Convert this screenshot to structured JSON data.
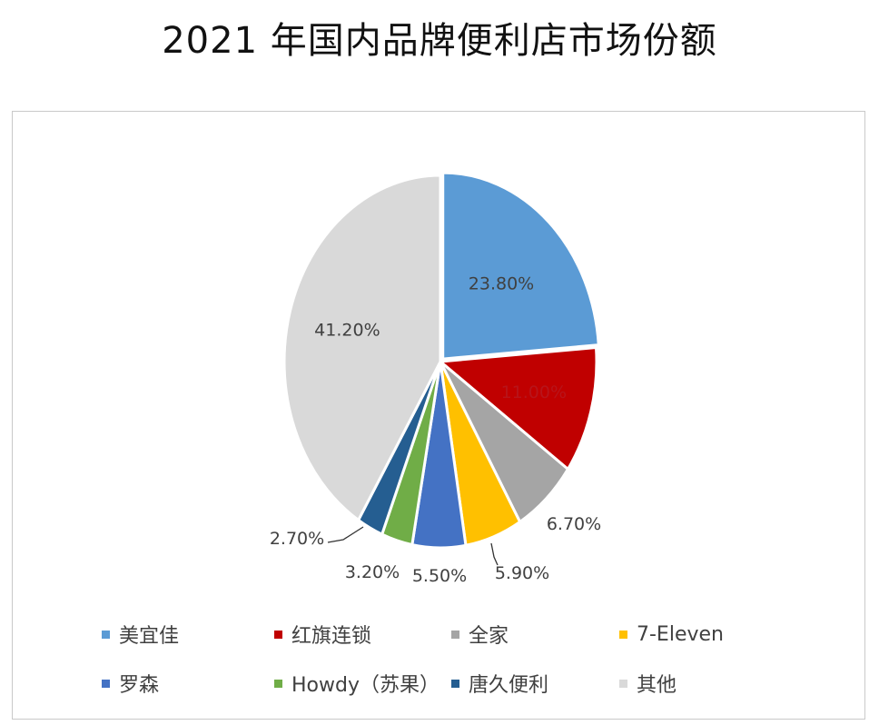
{
  "title": "2021 年国内品牌便利店市场份额",
  "chart_data": {
    "type": "pie",
    "title": "2021 年国内品牌便利店市场份额",
    "legend_position": "bottom",
    "slices": [
      {
        "label": "美宜佳",
        "value": 23.8,
        "value_label": "23.80%",
        "color": "#5b9bd5"
      },
      {
        "label": "红旗连锁",
        "value": 11.0,
        "value_label": "11.00%",
        "color": "#c00000"
      },
      {
        "label": "全家",
        "value": 6.7,
        "value_label": "6.70%",
        "color": "#a5a5a5"
      },
      {
        "label": "7-Eleven",
        "value": 5.9,
        "value_label": "5.90%",
        "color": "#ffc000"
      },
      {
        "label": "罗森",
        "value": 5.5,
        "value_label": "5.50%",
        "color": "#4472c4"
      },
      {
        "label": "Howdy（苏果）",
        "value": 3.2,
        "value_label": "3.20%",
        "color": "#70ad47"
      },
      {
        "label": "唐久便利",
        "value": 2.7,
        "value_label": "2.70%",
        "color": "#255e91"
      },
      {
        "label": "其他",
        "value": 41.2,
        "value_label": "41.20%",
        "color": "#d9d9d9"
      }
    ]
  }
}
